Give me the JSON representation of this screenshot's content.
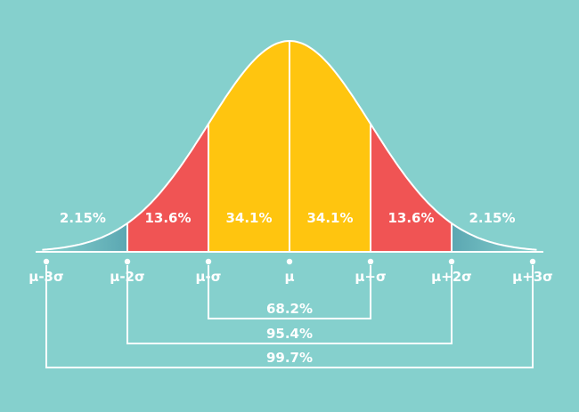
{
  "colors": {
    "background": "#85D0CD",
    "tail": "#5BA7B2",
    "second_band": "#F05454",
    "first_band": "#FFC50F",
    "white": "#FFFFFF"
  },
  "regions": [
    {
      "label": "2.15%",
      "fill_key": "tail"
    },
    {
      "label": "13.6%",
      "fill_key": "second_band"
    },
    {
      "label": "34.1%",
      "fill_key": "first_band"
    },
    {
      "label": "34.1%",
      "fill_key": "first_band"
    },
    {
      "label": "13.6%",
      "fill_key": "second_band"
    },
    {
      "label": "2.15%",
      "fill_key": "tail"
    }
  ],
  "axis_ticks": [
    "μ-3σ",
    "μ-2σ",
    "μ-σ",
    "μ",
    "μ+σ",
    "μ+2σ",
    "μ+3σ"
  ],
  "ranges": [
    {
      "label": "68.2%",
      "span_sigma": 1
    },
    {
      "label": "95.4%",
      "span_sigma": 2
    },
    {
      "label": "99.7%",
      "span_sigma": 3
    }
  ]
}
